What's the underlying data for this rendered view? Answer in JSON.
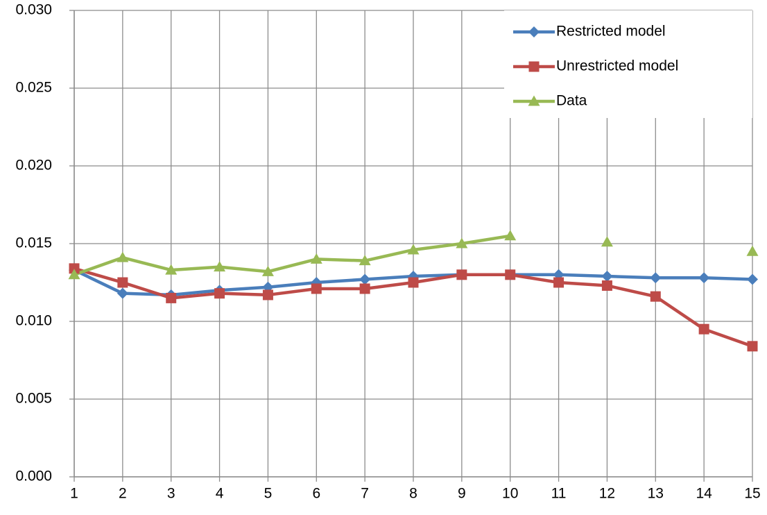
{
  "chart_data": {
    "type": "line",
    "x": [
      1,
      2,
      3,
      4,
      5,
      6,
      7,
      8,
      9,
      10,
      11,
      12,
      13,
      14,
      15
    ],
    "series": [
      {
        "name": "Restricted model",
        "color": "#4a7ebb",
        "marker": "diamond",
        "values": [
          0.0133,
          0.0118,
          0.0117,
          0.012,
          0.0122,
          0.0125,
          0.0127,
          0.0129,
          0.013,
          0.013,
          0.013,
          0.0129,
          0.0128,
          0.0128,
          0.0127
        ]
      },
      {
        "name": "Unrestricted model",
        "color": "#be4b48",
        "marker": "square",
        "values": [
          0.0134,
          0.0125,
          0.0115,
          0.0118,
          0.0117,
          0.0121,
          0.0121,
          0.0125,
          0.013,
          0.013,
          0.0125,
          0.0123,
          0.0116,
          0.0095,
          0.0084
        ]
      },
      {
        "name": "Data",
        "color": "#98b954",
        "marker": "triangle",
        "values": [
          0.013,
          0.0141,
          0.0133,
          0.0135,
          0.0132,
          0.014,
          0.0139,
          0.0146,
          0.015,
          0.0155,
          null,
          0.0151,
          null,
          null,
          0.0145
        ]
      }
    ],
    "xlim": [
      1,
      15
    ],
    "xticks": [
      1,
      2,
      3,
      4,
      5,
      6,
      7,
      8,
      9,
      10,
      11,
      12,
      13,
      14,
      15
    ],
    "ylim": [
      0,
      0.03
    ],
    "yticks": [
      {
        "value": 0,
        "label": "0.000"
      },
      {
        "value": 0.005,
        "label": "0.005"
      },
      {
        "value": 0.01,
        "label": "0.010"
      },
      {
        "value": 0.015,
        "label": "0.015"
      },
      {
        "value": 0.02,
        "label": "0.020"
      },
      {
        "value": 0.025,
        "label": "0.025"
      },
      {
        "value": 0.03,
        "label": "0.030"
      }
    ],
    "grid": true,
    "legend": "top-right"
  }
}
